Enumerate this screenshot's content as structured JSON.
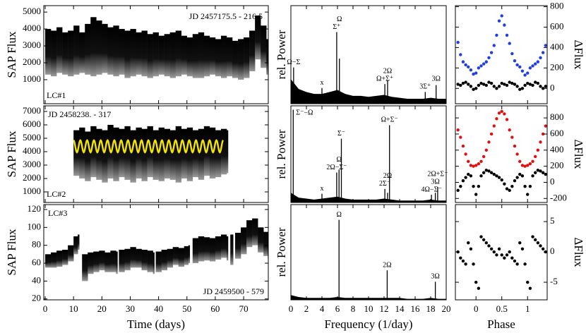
{
  "chart_data": [
    {
      "type": "band",
      "ylabel": "SAP Flux",
      "xlim": [
        -0.5,
        78.7
      ],
      "ylim": [
        -420,
        5380
      ],
      "xticks": [
        0,
        10,
        20,
        30,
        40,
        50,
        60,
        70
      ],
      "yticks": [
        1000,
        2000,
        3000,
        4000,
        5000
      ],
      "xtick_labels": false,
      "yaxis_side": "left",
      "annotations": [
        {
          "text": "JD 2457175.5 - 216.5",
          "corner": "top-right"
        },
        {
          "text": "LC#1",
          "corner": "bottom-left"
        }
      ],
      "x": [
        0,
        2,
        4,
        6,
        8,
        10,
        12,
        14,
        16,
        18,
        20,
        22,
        24,
        26,
        28,
        30,
        32,
        34,
        36,
        38,
        40,
        42,
        44,
        46,
        48,
        50,
        52,
        54,
        56,
        58,
        60,
        62,
        64,
        66,
        68,
        70,
        72,
        74,
        76,
        78
      ],
      "high": [
        4000,
        3900,
        4100,
        3800,
        3900,
        4200,
        3800,
        4300,
        4700,
        4500,
        4300,
        4100,
        4200,
        4000,
        3900,
        4000,
        3800,
        3900,
        3700,
        3800,
        3600,
        3700,
        3800,
        3900,
        3600,
        3500,
        3700,
        3800,
        3600,
        3500,
        3400,
        3600,
        3500,
        3300,
        3400,
        3500,
        3900,
        4800,
        4200,
        3400
      ],
      "low": [
        1300,
        1200,
        1400,
        1300,
        1200,
        1300,
        1400,
        1300,
        1200,
        1300,
        1400,
        1300,
        1200,
        1300,
        1100,
        1200,
        1300,
        1200,
        1100,
        1200,
        1300,
        1200,
        1100,
        1200,
        1300,
        1200,
        1100,
        1100,
        1200,
        1300,
        1200,
        1100,
        1200,
        1100,
        1000,
        1100,
        1500,
        2200,
        1700,
        1300
      ]
    },
    {
      "type": "spectrum",
      "ylabel": "rel. Power",
      "xlim": [
        0,
        20
      ],
      "ylim": [
        0,
        1
      ],
      "xticks": [
        0,
        2,
        4,
        6,
        8,
        10,
        12,
        14,
        16,
        18,
        20
      ],
      "xtick_labels": false,
      "floor_x": [
        0,
        1,
        2,
        3,
        4,
        5,
        6,
        7,
        8,
        9,
        10,
        11,
        12,
        13,
        14,
        15,
        16,
        17,
        18,
        19,
        20
      ],
      "floor": [
        0.25,
        0.15,
        0.12,
        0.1,
        0.1,
        0.12,
        0.14,
        0.1,
        0.08,
        0.08,
        0.07,
        0.08,
        0.09,
        0.07,
        0.06,
        0.05,
        0.05,
        0.05,
        0.06,
        0.05,
        0.05
      ],
      "peaks": [
        {
          "x": 0.35,
          "value": 0.37,
          "label": "Ω−Σ"
        },
        {
          "x": 4.0,
          "value": 0.16,
          "label": "x"
        },
        {
          "x": 5.9,
          "value": 0.73,
          "label": "Σ⁺"
        },
        {
          "x": 6.25,
          "value": 0.46,
          "label": "Ω"
        },
        {
          "x": 12.1,
          "value": 0.2,
          "label": "Ω+Σ⁺"
        },
        {
          "x": 12.45,
          "value": 0.24,
          "label": "2Ω"
        },
        {
          "x": 17.3,
          "value": 0.12,
          "label": "3Σ⁺"
        },
        {
          "x": 18.7,
          "value": 0.19,
          "label": "3Ω"
        }
      ]
    },
    {
      "type": "scatter",
      "ylabel": "ΔFlux",
      "xlim": [
        -0.4,
        1.38
      ],
      "ylim": [
        -150,
        810
      ],
      "xticks": [
        0,
        0.5,
        1
      ],
      "yticks": [
        0,
        200,
        400,
        600,
        800
      ],
      "xtick_labels": false,
      "yaxis_side": "right",
      "x": [
        -0.35,
        -0.3,
        -0.25,
        -0.2,
        -0.15,
        -0.1,
        -0.05,
        0,
        0.05,
        0.1,
        0.15,
        0.2,
        0.25,
        0.3,
        0.35,
        0.4,
        0.45,
        0.5,
        0.55,
        0.6,
        0.65,
        0.7,
        0.75,
        0.8,
        0.85,
        0.9,
        0.95,
        1,
        1.05,
        1.1,
        1.15,
        1.2,
        1.25,
        1.3,
        1.35
      ],
      "series": [
        {
          "color": "#1f3fe0",
          "values": [
            450,
            330,
            260,
            230,
            210,
            180,
            140,
            150,
            200,
            220,
            240,
            260,
            300,
            350,
            420,
            520,
            660,
            710,
            620,
            520,
            440,
            340,
            270,
            230,
            210,
            170,
            130,
            150,
            200,
            220,
            240,
            260,
            300,
            350,
            420
          ]
        },
        {
          "color": "#000000",
          "values": [
            40,
            30,
            50,
            60,
            40,
            20,
            -10,
            0,
            30,
            50,
            40,
            30,
            60,
            50,
            20,
            0,
            20,
            50,
            40,
            30,
            60,
            50,
            40,
            20,
            -10,
            0,
            30,
            50,
            40,
            30,
            60,
            50,
            20,
            0,
            20
          ]
        }
      ]
    },
    {
      "type": "band",
      "ylabel": "SAP Flux",
      "xlim": [
        -0.5,
        78.7
      ],
      "ylim": [
        210,
        7420
      ],
      "xticks": [
        0,
        10,
        20,
        30,
        40,
        50,
        60,
        70
      ],
      "yticks": [
        1000,
        2000,
        3000,
        4000,
        5000,
        6000,
        7000
      ],
      "xtick_labels": false,
      "yaxis_side": "left",
      "annotations": [
        {
          "text": "JD 2458238. - 317",
          "corner": "top-left"
        },
        {
          "text": "LC#2",
          "corner": "bottom-left"
        }
      ],
      "x": [
        10,
        12,
        14,
        16,
        18,
        20,
        22,
        24,
        26,
        28,
        30,
        32,
        34,
        36,
        38,
        40,
        42,
        44,
        46,
        48,
        50,
        52,
        54,
        56,
        58,
        60,
        62,
        64
      ],
      "high": [
        5600,
        5800,
        5500,
        5900,
        5700,
        5600,
        6000,
        5800,
        5700,
        5900,
        5600,
        5800,
        5700,
        5900,
        5600,
        5800,
        5700,
        5600,
        5900,
        5700,
        5800,
        5600,
        5700,
        5900,
        5800,
        5600,
        5700,
        5600
      ],
      "low": [
        2200,
        2000,
        1800,
        2100,
        1900,
        1700,
        2000,
        1800,
        2100,
        1900,
        1700,
        2000,
        1800,
        2100,
        1900,
        1800,
        2000,
        1900,
        1700,
        2000,
        1800,
        2100,
        1900,
        2200,
        2000,
        2100,
        2300,
        2400
      ],
      "model": {
        "color": "#f2e400",
        "x": [
          10,
          11.2,
          12.4,
          13.6,
          14.8,
          16,
          17.2,
          18.4,
          19.6,
          20.8,
          22,
          23.2,
          24.4,
          25.6,
          26.8,
          28,
          29.2,
          30.4,
          31.6,
          32.8,
          34,
          35.2,
          36.4,
          37.6,
          38.8,
          40,
          41.2,
          42.4,
          43.6,
          44.8,
          46,
          47.2,
          48.4,
          49.6,
          50.8,
          52,
          53.2,
          54.4,
          55.6,
          56.8,
          58,
          59.2,
          60.4,
          61.6,
          62.8
        ],
        "values": [
          4850,
          3950,
          4850,
          3950,
          4850,
          3950,
          4850,
          3950,
          4850,
          3950,
          4850,
          3950,
          4850,
          3950,
          4850,
          3950,
          4850,
          3950,
          4850,
          3950,
          4850,
          3950,
          4850,
          3950,
          4850,
          3950,
          4850,
          3950,
          4850,
          3950,
          4850,
          3950,
          4850,
          3950,
          4850,
          3950,
          4850,
          3950,
          4850,
          3950,
          4850,
          3950,
          4850,
          3950,
          4850
        ]
      }
    },
    {
      "type": "spectrum",
      "ylabel": "rel. Power",
      "xlim": [
        0,
        20
      ],
      "ylim": [
        0,
        1
      ],
      "xticks": [
        0,
        2,
        4,
        6,
        8,
        10,
        12,
        14,
        16,
        18,
        20
      ],
      "xtick_labels": false,
      "floor_x": [
        0,
        1,
        2,
        3,
        4,
        5,
        6,
        7,
        8,
        9,
        10,
        11,
        12,
        13,
        14,
        15,
        16,
        17,
        18,
        19,
        20
      ],
      "floor": [
        0.1,
        0.05,
        0.04,
        0.03,
        0.04,
        0.05,
        0.06,
        0.04,
        0.03,
        0.03,
        0.03,
        0.03,
        0.04,
        0.03,
        0.02,
        0.02,
        0.02,
        0.02,
        0.03,
        0.02,
        0.02
      ],
      "peaks": [
        {
          "x": 0.3,
          "value": 0.96,
          "label": "Σ⁻−Ω"
        },
        {
          "x": 4.0,
          "value": 0.09,
          "label": "x"
        },
        {
          "x": 5.9,
          "value": 0.31,
          "label": "2Ω−Σ⁻"
        },
        {
          "x": 6.2,
          "value": 0.34,
          "label": "Ω"
        },
        {
          "x": 6.5,
          "value": 0.66,
          "label": "Σ⁻"
        },
        {
          "x": 12.1,
          "value": 0.14,
          "label": "2Σ⁻"
        },
        {
          "x": 12.45,
          "value": 0.1,
          "label": "2Ω"
        },
        {
          "x": 12.7,
          "value": 0.8,
          "label": "Ω+Σ⁻"
        },
        {
          "x": 18.1,
          "value": 0.08,
          "label": "4Ω−Σ⁻"
        },
        {
          "x": 18.6,
          "value": 0.1,
          "label": "3Ω"
        },
        {
          "x": 18.9,
          "value": 0.16,
          "label": "2Ω+Σ⁻"
        }
      ]
    },
    {
      "type": "scatter",
      "ylabel": "ΔFlux",
      "xlim": [
        -0.4,
        1.38
      ],
      "ylim": [
        -250,
        950
      ],
      "xticks": [
        0,
        0.5,
        1
      ],
      "yticks": [
        -200,
        0,
        200,
        400,
        600,
        800
      ],
      "xtick_labels": false,
      "yaxis_side": "right",
      "x": [
        -0.35,
        -0.3,
        -0.25,
        -0.2,
        -0.15,
        -0.1,
        -0.05,
        0,
        0.05,
        0.1,
        0.15,
        0.2,
        0.25,
        0.3,
        0.35,
        0.4,
        0.45,
        0.5,
        0.55,
        0.6,
        0.65,
        0.7,
        0.75,
        0.8,
        0.85,
        0.9,
        0.95,
        1,
        1.05,
        1.1,
        1.15,
        1.2,
        1.25,
        1.3,
        1.35
      ],
      "series": [
        {
          "color": "#e01010",
          "values": [
            650,
            560,
            450,
            350,
            260,
            210,
            200,
            210,
            230,
            260,
            320,
            400,
            500,
            600,
            700,
            790,
            860,
            880,
            850,
            780,
            650,
            560,
            450,
            350,
            260,
            210,
            200,
            210,
            230,
            260,
            320,
            400,
            500,
            600,
            700
          ]
        },
        {
          "color": "#000000",
          "values": [
            -100,
            -50,
            20,
            60,
            100,
            80,
            -50,
            -150,
            -50,
            80,
            120,
            150,
            140,
            120,
            100,
            80,
            60,
            30,
            -20,
            -80,
            -100,
            -50,
            20,
            60,
            100,
            80,
            -50,
            -150,
            -50,
            80,
            120,
            150,
            140,
            120,
            100
          ]
        }
      ]
    },
    {
      "type": "band",
      "ylabel": "SAP Flux",
      "xlabel": "Time (days)",
      "xlim": [
        -0.5,
        78.7
      ],
      "ylim": [
        19,
        125.5
      ],
      "xticks": [
        0,
        10,
        20,
        30,
        40,
        50,
        60,
        70
      ],
      "yticks": [
        20,
        40,
        60,
        80,
        100,
        120
      ],
      "xtick_labels": true,
      "yaxis_side": "left",
      "annotations": [
        {
          "text": "LC#3",
          "corner": "top-left"
        },
        {
          "text": "JD 2459500 - 579",
          "corner": "bottom-right"
        }
      ],
      "x": [
        0,
        2,
        4,
        6,
        8,
        10,
        11.5,
        12.5,
        13,
        15,
        17,
        19,
        21,
        23,
        25,
        25.5,
        26,
        28,
        30,
        32,
        34,
        36,
        38,
        38.5,
        39,
        41,
        43,
        45,
        47,
        49,
        50.5,
        51,
        52,
        54,
        56,
        58,
        60,
        62,
        64,
        64.8,
        65.3,
        65.8,
        66.2,
        67,
        69,
        71,
        73,
        75,
        77,
        78.5
      ],
      "high": [
        70,
        72,
        74,
        75,
        80,
        90,
        92,
        null,
        70,
        72,
        73,
        74,
        72,
        74,
        73,
        null,
        75,
        76,
        78,
        76,
        75,
        74,
        72,
        null,
        73,
        75,
        76,
        78,
        77,
        79,
        80,
        null,
        88,
        90,
        89,
        88,
        90,
        92,
        90,
        null,
        92,
        92,
        null,
        94,
        100,
        108,
        110,
        100,
        95,
        90
      ],
      "low": [
        55,
        55,
        56,
        58,
        62,
        70,
        75,
        null,
        40,
        48,
        50,
        52,
        50,
        50,
        48,
        null,
        50,
        52,
        55,
        55,
        52,
        50,
        48,
        null,
        50,
        52,
        55,
        58,
        56,
        58,
        60,
        null,
        60,
        62,
        63,
        62,
        64,
        66,
        63,
        null,
        58,
        58,
        null,
        65,
        70,
        78,
        80,
        72,
        68,
        65
      ]
    },
    {
      "type": "spectrum",
      "ylabel": "rel. Power",
      "xlabel": "Frequency (1/day)",
      "xlim": [
        0,
        20
      ],
      "ylim": [
        0,
        1
      ],
      "xticks": [
        0,
        2,
        4,
        6,
        8,
        10,
        12,
        14,
        16,
        18,
        20
      ],
      "xtick_labels": true,
      "floor_x": [
        0,
        1,
        2,
        3,
        4,
        5,
        6,
        7,
        8,
        9,
        10,
        11,
        12,
        13,
        14,
        15,
        16,
        17,
        18,
        19,
        20
      ],
      "floor": [
        0.05,
        0.03,
        0.02,
        0.02,
        0.02,
        0.02,
        0.03,
        0.02,
        0.02,
        0.02,
        0.02,
        0.02,
        0.02,
        0.02,
        0.02,
        0.01,
        0.01,
        0.01,
        0.02,
        0.01,
        0.01
      ],
      "peaks": [
        {
          "x": 6.2,
          "value": 0.84,
          "label": "Ω"
        },
        {
          "x": 12.4,
          "value": 0.31,
          "label": "2Ω"
        },
        {
          "x": 18.6,
          "value": 0.19,
          "label": "3Ω"
        }
      ]
    },
    {
      "type": "scatter",
      "ylabel": "ΔFlux",
      "xlabel": "Phase",
      "xlim": [
        -0.4,
        1.38
      ],
      "ylim": [
        -7.9,
        7.8
      ],
      "xticks": [
        0,
        0.5,
        1
      ],
      "yticks": [
        -5,
        0,
        5
      ],
      "xtick_labels": true,
      "yaxis_side": "right",
      "x": [
        -0.35,
        -0.3,
        -0.25,
        -0.2,
        -0.15,
        -0.1,
        -0.05,
        0,
        0.05,
        0.1,
        0.15,
        0.2,
        0.25,
        0.3,
        0.35,
        0.4,
        0.45,
        0.5,
        0.55,
        0.6,
        0.65,
        0.7,
        0.75,
        0.8,
        0.85,
        0.9,
        0.95,
        1,
        1.05,
        1.1,
        1.15,
        1.2,
        1.25,
        1.3,
        1.35
      ],
      "series": [
        {
          "color": "#000000",
          "values": [
            0,
            -1,
            -1.5,
            -2,
            1.5,
            0.5,
            -2,
            -5,
            -6,
            2.5,
            2,
            1.5,
            1,
            0.5,
            0,
            -0.5,
            0.5,
            -0.5,
            -1,
            -0.5,
            0,
            -1,
            -1.5,
            -2,
            1.5,
            0.5,
            -2,
            -5,
            -6,
            2.5,
            2,
            1.5,
            1,
            0.5,
            0
          ]
        }
      ]
    }
  ]
}
